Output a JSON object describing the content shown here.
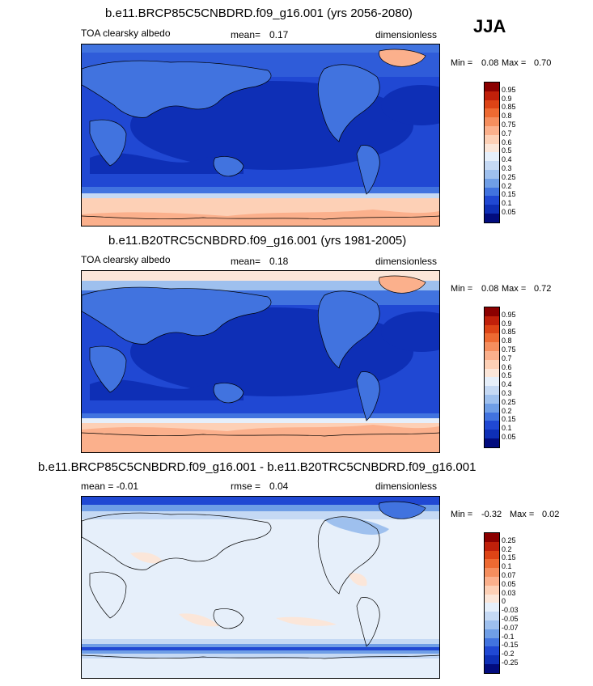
{
  "season": "JJA",
  "panels": [
    {
      "title": "b.e11.BRCP85C5CNBDRD.f09_g16.001 (yrs 2056-2080)",
      "left": "TOA clearsky albedo",
      "mean_label": "mean=",
      "mean_value": "0.17",
      "units": "dimensionless",
      "min_label": "Min =",
      "min_value": "0.08",
      "max_label": "Max =",
      "max_value": "0.70",
      "colorbar_ticks": [
        "0.95",
        "0.9",
        "0.85",
        "0.8",
        "0.75",
        "0.7",
        "0.6",
        "0.5",
        "0.4",
        "0.3",
        "0.25",
        "0.2",
        "0.15",
        "0.1",
        "0.05"
      ],
      "colorbar_colors": [
        "#8b0000",
        "#c0200a",
        "#dd4416",
        "#ee6a32",
        "#f58e5e",
        "#fbb08c",
        "#fdd0b6",
        "#fbe6d9",
        "#e6effa",
        "#c5d9f4",
        "#9ec0ee",
        "#6f9ee6",
        "#4173df",
        "#2048d3",
        "#0e2fb6",
        "#020c7e"
      ]
    },
    {
      "title": "b.e11.B20TRC5CNBDRD.f09_g16.001 (yrs 1981-2005)",
      "left": "TOA clearsky albedo",
      "mean_label": "mean=",
      "mean_value": "0.18",
      "units": "dimensionless",
      "min_label": "Min =",
      "min_value": "0.08",
      "max_label": "Max =",
      "max_value": "0.72",
      "colorbar_ticks": [
        "0.95",
        "0.9",
        "0.85",
        "0.8",
        "0.75",
        "0.7",
        "0.6",
        "0.5",
        "0.4",
        "0.3",
        "0.25",
        "0.2",
        "0.15",
        "0.1",
        "0.05"
      ],
      "colorbar_colors": [
        "#8b0000",
        "#c0200a",
        "#dd4416",
        "#ee6a32",
        "#f58e5e",
        "#fbb08c",
        "#fdd0b6",
        "#fbe6d9",
        "#e6effa",
        "#c5d9f4",
        "#9ec0ee",
        "#6f9ee6",
        "#4173df",
        "#2048d3",
        "#0e2fb6",
        "#020c7e"
      ]
    },
    {
      "title": "b.e11.BRCP85C5CNBDRD.f09_g16.001 - b.e11.B20TRC5CNBDRD.f09_g16.001",
      "left": "mean = -0.01",
      "mean_label": "rmse =",
      "mean_value": "0.04",
      "units": "dimensionless",
      "min_label": "Min =",
      "min_value": "-0.32",
      "max_label": "Max =",
      "max_value": "0.02",
      "colorbar_ticks": [
        "0.25",
        "0.2",
        "0.15",
        "0.1",
        "0.07",
        "0.05",
        "0.03",
        "0",
        "-0.03",
        "-0.05",
        "-0.07",
        "-0.1",
        "-0.15",
        "-0.2",
        "-0.25"
      ],
      "colorbar_colors": [
        "#8b0000",
        "#c0200a",
        "#dd4416",
        "#ee6a32",
        "#f58e5e",
        "#fbb08c",
        "#fdd0b6",
        "#fbe6d9",
        "#e6effa",
        "#c5d9f4",
        "#9ec0ee",
        "#6f9ee6",
        "#4173df",
        "#2048d3",
        "#0e2fb6",
        "#020c7e"
      ]
    }
  ]
}
